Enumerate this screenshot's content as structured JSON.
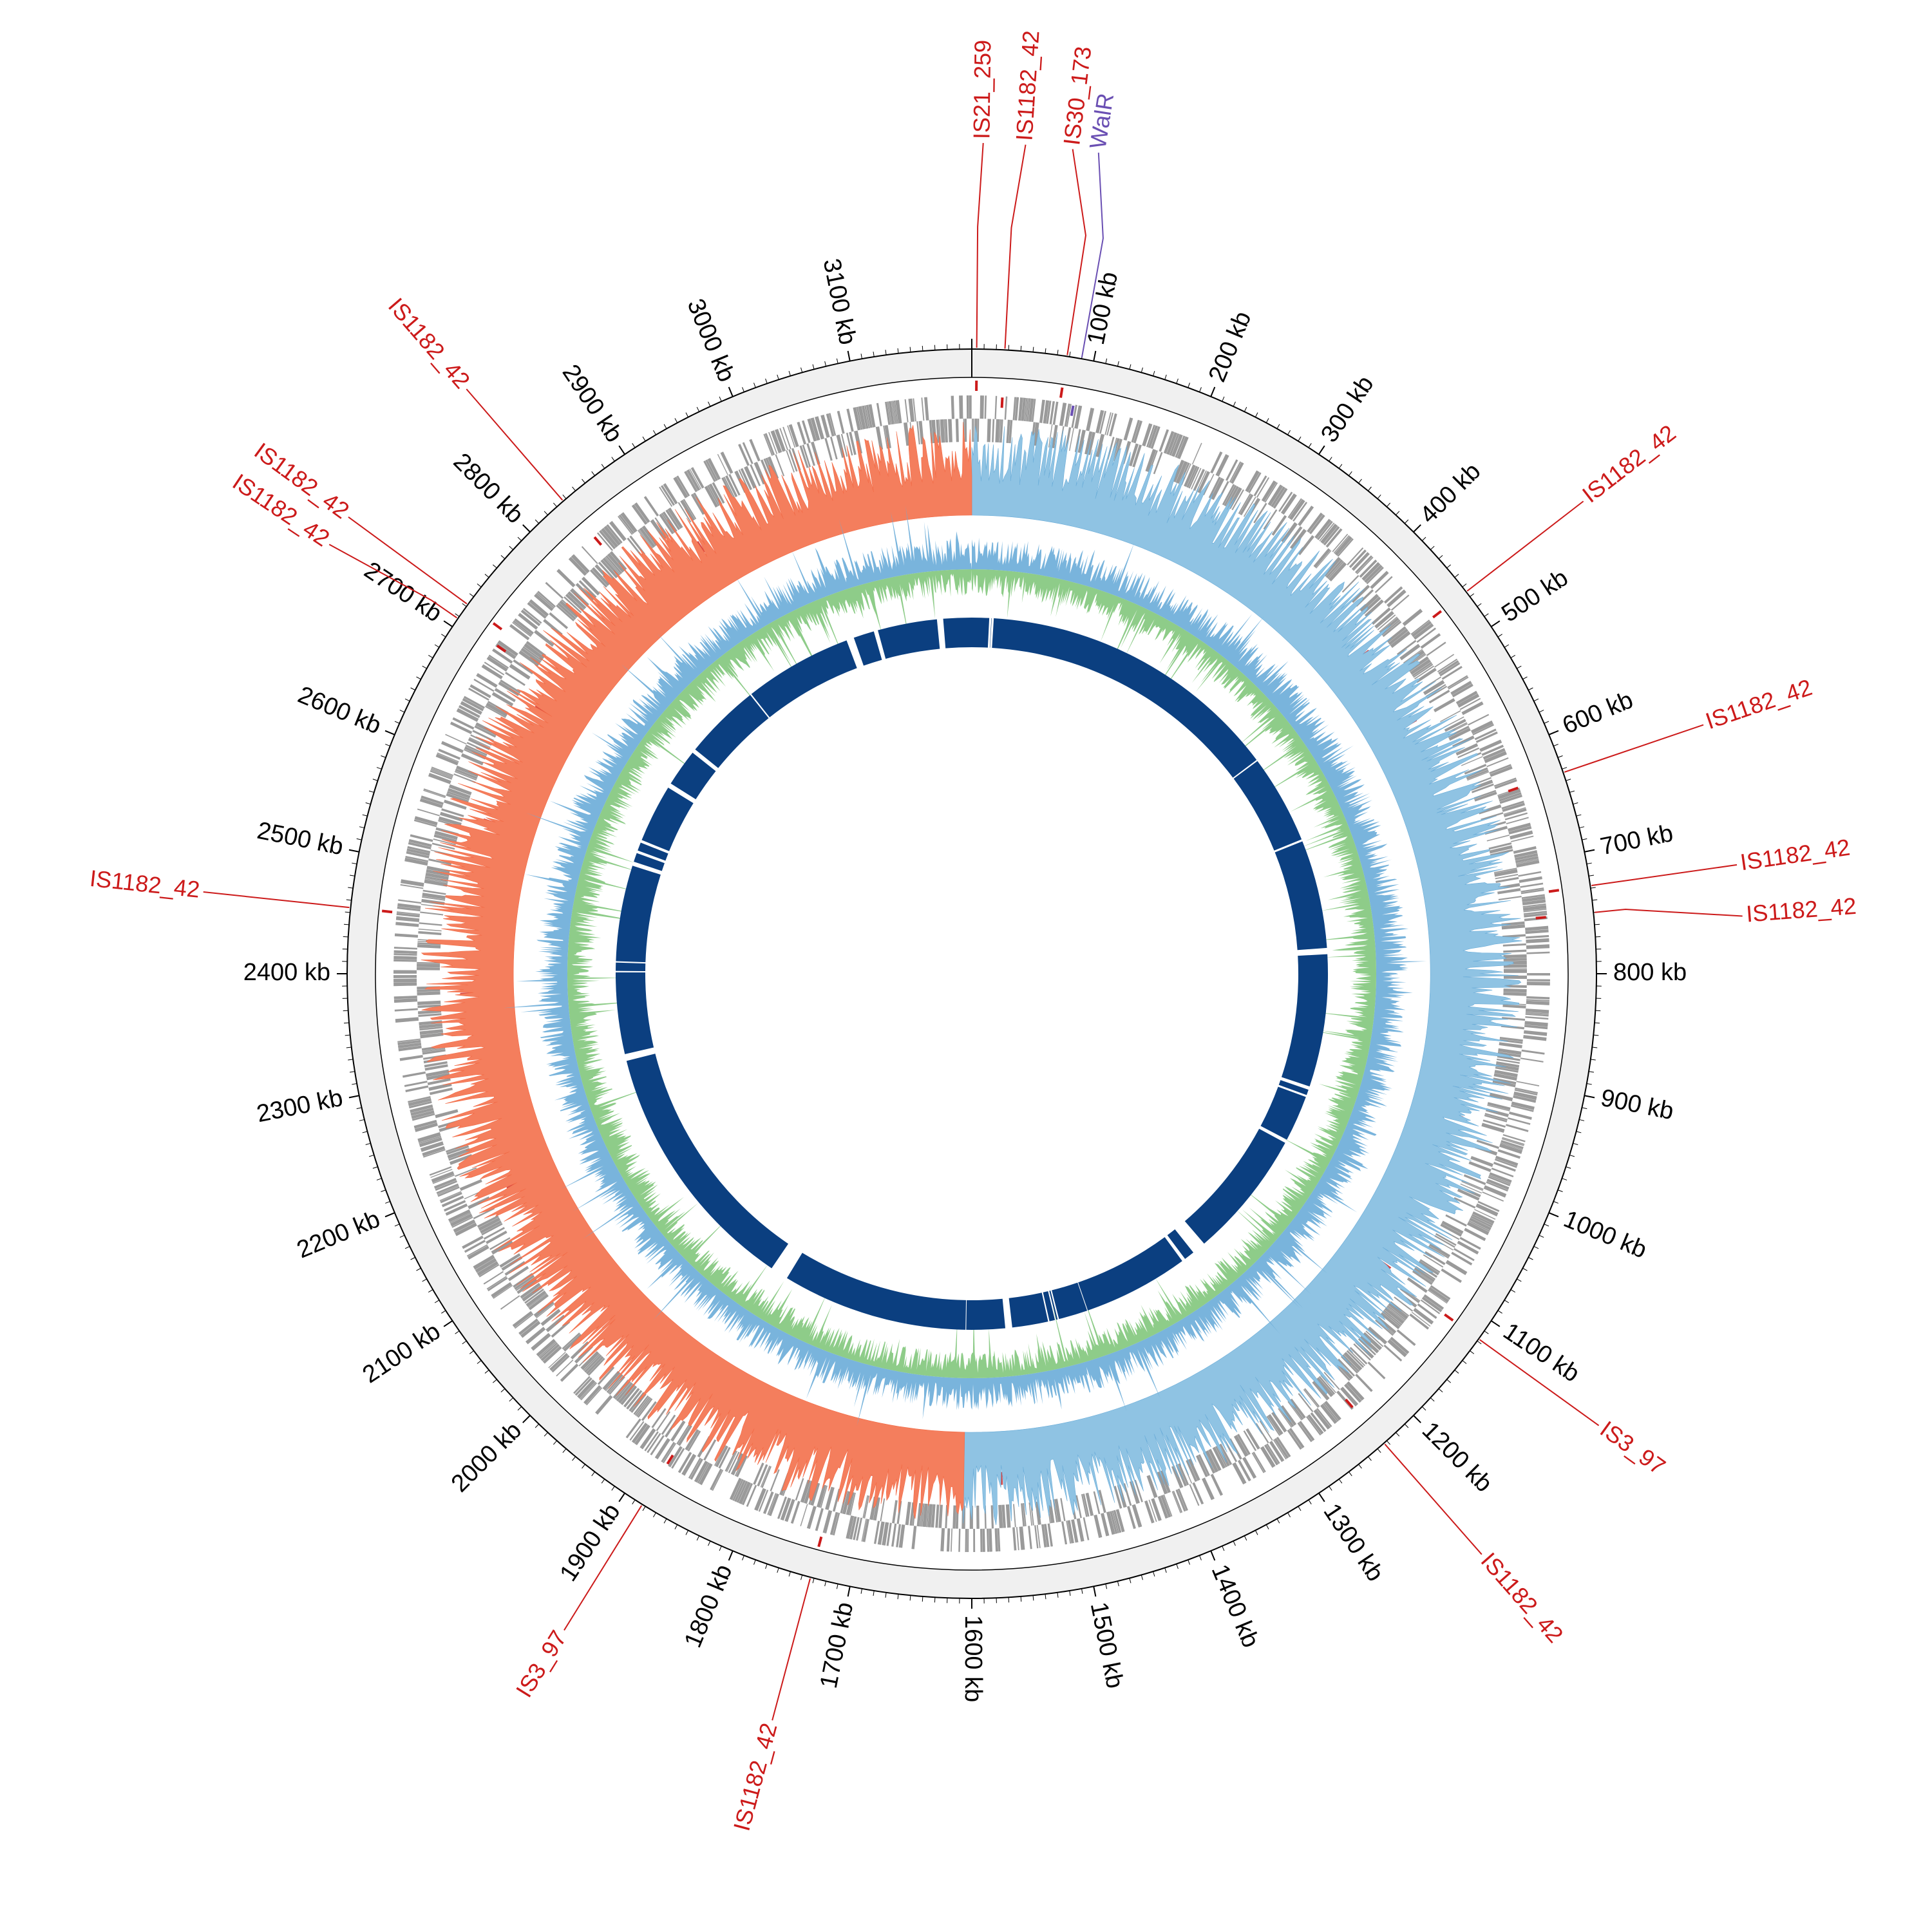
{
  "genome": {
    "length_kb": 3200,
    "tick_unit": "kb",
    "tick_labels": [
      {
        "kb": 100,
        "label": "100 kb"
      },
      {
        "kb": 200,
        "label": "200 kb"
      },
      {
        "kb": 300,
        "label": "300 kb"
      },
      {
        "kb": 400,
        "label": "400 kb"
      },
      {
        "kb": 500,
        "label": "500 kb"
      },
      {
        "kb": 600,
        "label": "600 kb"
      },
      {
        "kb": 700,
        "label": "700 kb"
      },
      {
        "kb": 800,
        "label": "800 kb"
      },
      {
        "kb": 900,
        "label": "900 kb"
      },
      {
        "kb": 1000,
        "label": "1000 kb"
      },
      {
        "kb": 1100,
        "label": "1100 kb"
      },
      {
        "kb": 1200,
        "label": "1200 kb"
      },
      {
        "kb": 1300,
        "label": "1300 kb"
      },
      {
        "kb": 1400,
        "label": "1400 kb"
      },
      {
        "kb": 1500,
        "label": "1500 kb"
      },
      {
        "kb": 1600,
        "label": "1600 kb"
      },
      {
        "kb": 1700,
        "label": "1700 kb"
      },
      {
        "kb": 1800,
        "label": "1800 kb"
      },
      {
        "kb": 1900,
        "label": "1900 kb"
      },
      {
        "kb": 2000,
        "label": "2000 kb"
      },
      {
        "kb": 2100,
        "label": "2100 kb"
      },
      {
        "kb": 2200,
        "label": "2200 kb"
      },
      {
        "kb": 2300,
        "label": "2300 kb"
      },
      {
        "kb": 2400,
        "label": "2400 kb"
      },
      {
        "kb": 2500,
        "label": "2500 kb"
      },
      {
        "kb": 2600,
        "label": "2600 kb"
      },
      {
        "kb": 2700,
        "label": "2700 kb"
      },
      {
        "kb": 2800,
        "label": "2800 kb"
      },
      {
        "kb": 2900,
        "label": "2900 kb"
      },
      {
        "kb": 3000,
        "label": "3000 kb"
      },
      {
        "kb": 3100,
        "label": "3100 kb"
      }
    ]
  },
  "features": [
    {
      "name": "IS21_259",
      "kb": 4,
      "label_kb": 7,
      "color": "#cc1a1a"
    },
    {
      "name": "IS1182_42",
      "kb": 27,
      "label_kb": 33,
      "color": "#cc1a1a"
    },
    {
      "name": "IS30_173",
      "kb": 78,
      "label_kb": 62,
      "color": "#cc1a1a"
    },
    {
      "name": "WalR",
      "kb": 90,
      "label_kb": 78,
      "color": "#6a4fb3"
    },
    {
      "name": "IS1182_42",
      "kb": 465,
      "label_kb": 465,
      "color": "#cc1a1a"
    },
    {
      "name": "IS1182_42",
      "kb": 633,
      "label_kb": 633,
      "color": "#cc1a1a"
    },
    {
      "name": "IS1182_42",
      "kb": 728,
      "label_kb": 728,
      "color": "#cc1a1a"
    },
    {
      "name": "IS1182_42",
      "kb": 750,
      "label_kb": 762,
      "color": "#cc1a1a"
    },
    {
      "name": "IS3_97",
      "kb": 1118,
      "label_kb": 1118,
      "color": "#cc1a1a"
    },
    {
      "name": "IS1182_42",
      "kb": 1233,
      "label_kb": 1233,
      "color": "#cc1a1a"
    },
    {
      "name": "IS1182_42",
      "kb": 1733,
      "label_kb": 1733,
      "color": "#cc1a1a"
    },
    {
      "name": "IS3_97",
      "kb": 1883,
      "label_kb": 1883,
      "color": "#cc1a1a"
    },
    {
      "name": "IS1182_42",
      "kb": 2454,
      "label_kb": 2454,
      "color": "#cc1a1a"
    },
    {
      "name": "IS1182_42",
      "kb": 2708,
      "label_kb": 2700,
      "color": "#cc1a1a"
    },
    {
      "name": "IS1182_42",
      "kb": 2722,
      "label_kb": 2722,
      "color": "#cc1a1a"
    },
    {
      "name": "IS1182_42",
      "kb": 2837,
      "label_kb": 2837,
      "color": "#cc1a1a"
    }
  ],
  "tracks": {
    "backbone_color": "#f0f0f0",
    "cds_color": "#9a9a9a",
    "mobile_element_color": "#cc1a1a",
    "gc_skew_positive_color": "#8fc3e3",
    "gc_skew_negative_color": "#f47e5d",
    "gc_content_high_color": "#6aacd8",
    "gc_content_low_color": "#82c77c",
    "synteny_color": "#0b3f80"
  },
  "synteny_gaps_kb": [
    [
      -50,
      -41
    ],
    [
      25,
      28
    ],
    [
      28.5,
      31.5
    ],
    [
      472,
      474
    ],
    [
      603,
      606
    ],
    [
      763,
      772
    ],
    [
      964,
      969
    ],
    [
      977,
      980
    ],
    [
      1047,
      1052
    ],
    [
      1238,
      1258
    ],
    [
      1273,
      1278
    ],
    [
      1431,
      1432
    ],
    [
      1474,
      1476
    ],
    [
      1478,
      1480
    ],
    [
      1488,
      1490
    ],
    [
      1542,
      1552
    ],
    [
      1608,
      1609
    ],
    [
      1878,
      1904
    ],
    [
      2274,
      2284
    ],
    [
      2402,
      2404
    ],
    [
      2416,
      2418
    ],
    [
      2557,
      2563
    ],
    [
      2576,
      2580
    ],
    [
      2592,
      2596
    ],
    [
      2680,
      2687
    ],
    [
      2741,
      2747
    ],
    [
      2858,
      2860
    ],
    [
      3017,
      3028
    ],
    [
      3058,
      3064
    ]
  ]
}
